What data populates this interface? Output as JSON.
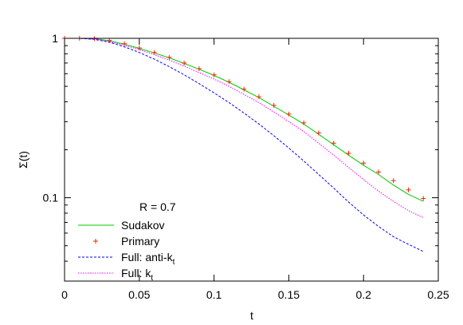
{
  "chart_data": {
    "type": "line",
    "title": "",
    "xlabel": "t",
    "ylabel": "Σ(t)",
    "xlim": [
      0,
      0.25
    ],
    "ylim": [
      0.03,
      1
    ],
    "yscale": "log",
    "grid": false,
    "legend_position": "bottom-left",
    "x_ticks": [
      0,
      0.05,
      0.1,
      0.15,
      0.2,
      0.25
    ],
    "x_tick_labels": [
      "0",
      "0.05",
      "0.1",
      "0.15",
      "0.2",
      "0.25"
    ],
    "y_ticks": [
      0.1,
      1
    ],
    "y_tick_labels": [
      "0.1",
      "1"
    ],
    "annotation": "R = 0.7",
    "series": [
      {
        "name": "Sudakov",
        "style": "solid",
        "color": "#00cc00",
        "x": [
          0,
          0.01,
          0.02,
          0.03,
          0.04,
          0.05,
          0.06,
          0.07,
          0.08,
          0.09,
          0.1,
          0.11,
          0.12,
          0.13,
          0.14,
          0.15,
          0.16,
          0.17,
          0.18,
          0.19,
          0.2,
          0.21,
          0.22,
          0.23,
          0.24
        ],
        "y": [
          1.0,
          1.0,
          0.995,
          0.965,
          0.92,
          0.865,
          0.81,
          0.755,
          0.695,
          0.64,
          0.585,
          0.53,
          0.475,
          0.425,
          0.375,
          0.33,
          0.29,
          0.25,
          0.215,
          0.185,
          0.16,
          0.14,
          0.12,
          0.105,
          0.095
        ]
      },
      {
        "name": "Primary",
        "style": "points",
        "color": "#ff2200",
        "x": [
          0,
          0.01,
          0.02,
          0.03,
          0.04,
          0.05,
          0.06,
          0.07,
          0.08,
          0.09,
          0.1,
          0.11,
          0.12,
          0.13,
          0.14,
          0.15,
          0.16,
          0.17,
          0.18,
          0.19,
          0.2,
          0.21,
          0.22,
          0.23,
          0.24
        ],
        "y": [
          1.0,
          1.0,
          0.995,
          0.97,
          0.925,
          0.87,
          0.815,
          0.76,
          0.7,
          0.645,
          0.59,
          0.535,
          0.48,
          0.43,
          0.38,
          0.335,
          0.295,
          0.255,
          0.22,
          0.19,
          0.165,
          0.145,
          0.128,
          0.112,
          0.099
        ]
      },
      {
        "name": "Full: anti-k",
        "name_subscript": "t",
        "style": "dotted",
        "color": "#0000ff",
        "x": [
          0,
          0.01,
          0.02,
          0.03,
          0.04,
          0.05,
          0.06,
          0.07,
          0.08,
          0.09,
          0.1,
          0.11,
          0.12,
          0.13,
          0.14,
          0.15,
          0.16,
          0.17,
          0.18,
          0.19,
          0.2,
          0.21,
          0.22,
          0.23,
          0.24
        ],
        "y": [
          1.0,
          1.0,
          0.985,
          0.945,
          0.885,
          0.815,
          0.74,
          0.665,
          0.59,
          0.52,
          0.455,
          0.395,
          0.34,
          0.29,
          0.245,
          0.205,
          0.17,
          0.14,
          0.115,
          0.094,
          0.078,
          0.066,
          0.057,
          0.051,
          0.046
        ]
      },
      {
        "name": "Full: k",
        "name_subscript": "t",
        "style": "dotted",
        "color": "#ff00ff",
        "x": [
          0,
          0.01,
          0.02,
          0.03,
          0.04,
          0.05,
          0.06,
          0.07,
          0.08,
          0.09,
          0.1,
          0.11,
          0.12,
          0.13,
          0.14,
          0.15,
          0.16,
          0.17,
          0.18,
          0.19,
          0.2,
          0.21,
          0.22,
          0.23,
          0.24
        ],
        "y": [
          1.0,
          1.0,
          0.99,
          0.955,
          0.905,
          0.85,
          0.79,
          0.73,
          0.67,
          0.61,
          0.555,
          0.5,
          0.445,
          0.395,
          0.345,
          0.3,
          0.26,
          0.22,
          0.185,
          0.155,
          0.13,
          0.11,
          0.095,
          0.083,
          0.075
        ]
      }
    ]
  }
}
